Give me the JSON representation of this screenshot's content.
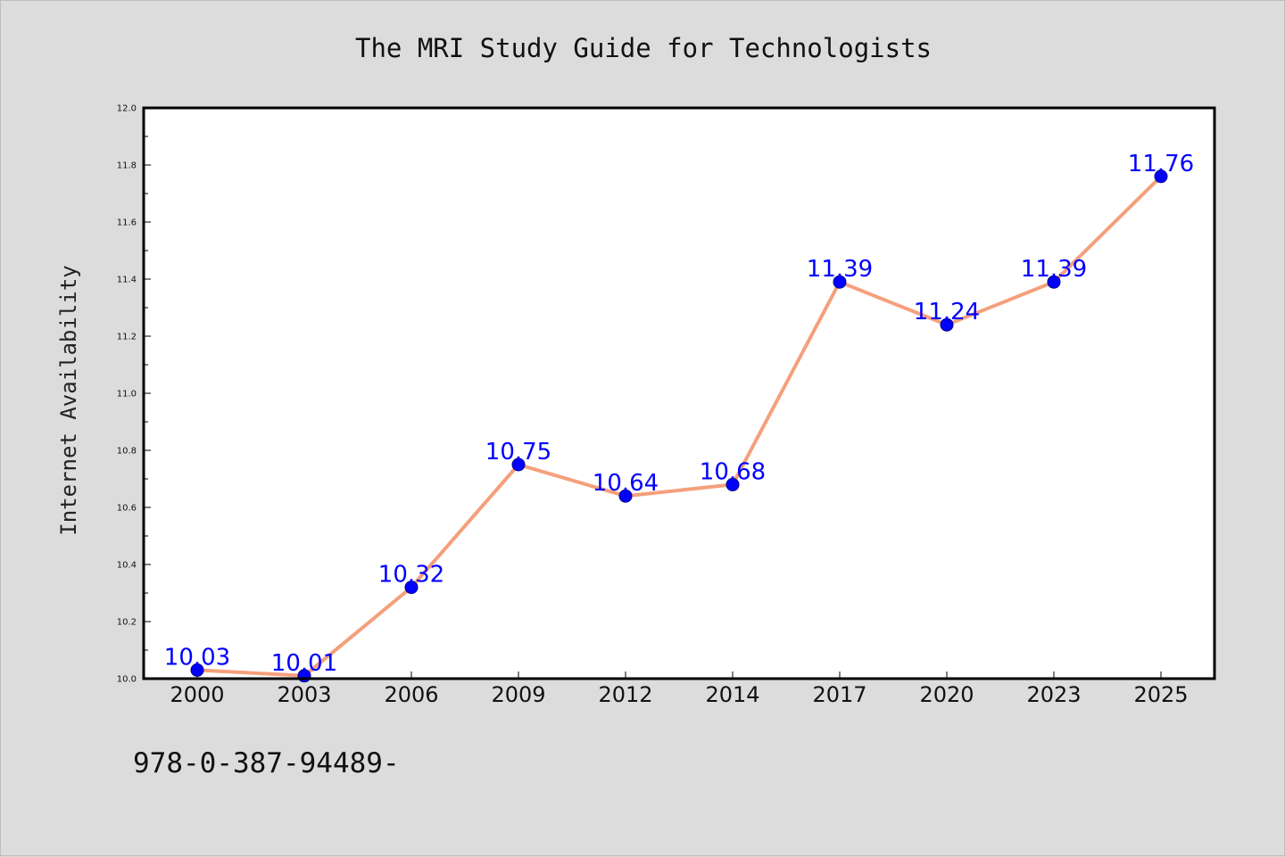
{
  "chart_data": {
    "type": "line",
    "title": "The MRI Study Guide for Technologists",
    "xlabel": "",
    "ylabel": "Internet Availability",
    "categories": [
      "2000",
      "2003",
      "2006",
      "2009",
      "2012",
      "2014",
      "2017",
      "2020",
      "2023",
      "2025"
    ],
    "series": [
      {
        "name": "",
        "values": [
          10.03,
          10.01,
          10.32,
          10.75,
          10.64,
          10.68,
          11.39,
          11.24,
          11.39,
          11.76
        ],
        "data_labels": [
          "10.03",
          "10.01",
          "10.32",
          "10.75",
          "10.64",
          "10.68",
          "11.39",
          "11.24",
          "11.39",
          "11.76"
        ]
      }
    ],
    "ylim": [
      10.0,
      12.0
    ],
    "yticks": [
      "10.0",
      "10.2",
      "10.4",
      "10.6",
      "10.8",
      "11.0",
      "11.2",
      "11.4",
      "11.6",
      "11.8",
      "12.0"
    ],
    "grid": false,
    "legend": "none",
    "colors": {
      "line": "#f4a07c",
      "marker": "#0000ff",
      "label": "#0000ff",
      "plot_background": "#ffffff",
      "figure_background": "#dcdcdc"
    }
  },
  "footer": {
    "text": "978-0-387-94489-"
  }
}
